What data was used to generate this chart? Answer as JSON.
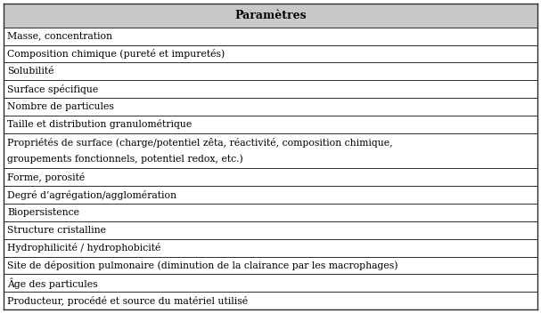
{
  "header": "Paramètres",
  "rows": [
    "Masse, concentration",
    "Composition chimique (pureté et impuretés)",
    "Solubilité",
    "Surface spécifique",
    "Nombre de particules",
    "Taille et distribution granulométrique",
    "Propriétés de surface (charge/potentiel zêta, réactivité, composition chimique,\ngroupements fonctionnels, potentiel redox, etc.)",
    "Forme, porosité",
    "Degré d’agrégation/agglomération",
    "Biopersistence",
    "Structure cristalline",
    "Hydrophilicité / hydrophobicité",
    "Site de déposition pulmonaire (diminution de la clairance par les macrophages)",
    "Âge des particules",
    "Producteur, procédé et source du matériel utilisé"
  ],
  "bg_color": "#ffffff",
  "header_bg": "#c8c8c8",
  "border_color": "#2d2d2d",
  "text_color": "#000000",
  "font_size": 7.8,
  "header_font_size": 9.0,
  "fig_width": 6.07,
  "fig_height": 3.52,
  "dpi": 100
}
